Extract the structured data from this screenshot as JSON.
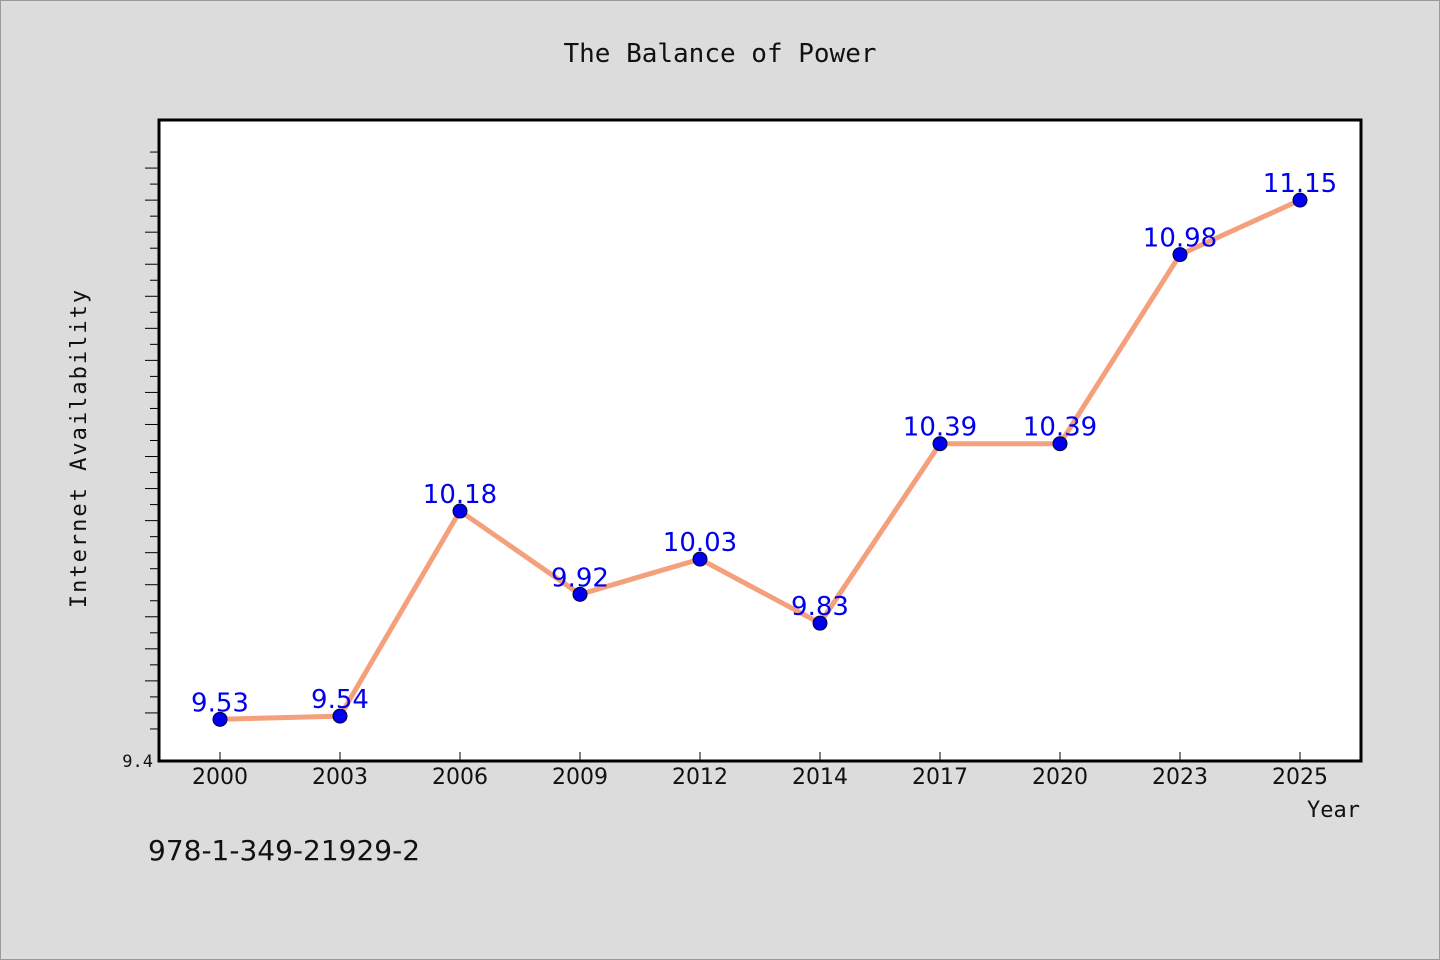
{
  "chart_data": {
    "type": "line",
    "title": "The Balance of Power",
    "xlabel": "Year",
    "ylabel": "Internet Availability",
    "categories": [
      "2000",
      "2003",
      "2006",
      "2009",
      "2012",
      "2014",
      "2017",
      "2020",
      "2023",
      "2025"
    ],
    "series": [
      {
        "values": [
          9.53,
          9.54,
          10.18,
          9.92,
          10.03,
          9.83,
          10.39,
          10.39,
          10.98,
          11.15
        ]
      }
    ],
    "data_labels": [
      "9.53",
      "9.54",
      "10.18",
      "9.92",
      "10.03",
      "9.83",
      "10.39",
      "10.39",
      "10.98",
      "11.15"
    ],
    "y_tick_labels": [
      "9.4"
    ],
    "ylim": [
      9.4,
      11.4
    ],
    "grid": false,
    "legend": "none",
    "line_color": "#f4a07c",
    "marker_color": "#0000ee",
    "label_color": "#0000ee"
  },
  "isbn": "978-1-349-21929-2"
}
